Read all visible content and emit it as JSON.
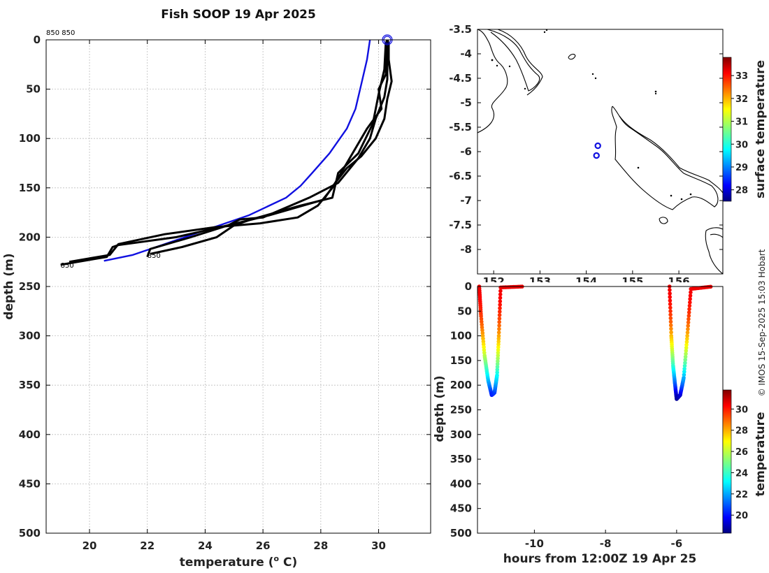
{
  "title": "Fish SOOP 19 Apr 2025",
  "credit": "© IMOS 15-Sep-2025 15:03 Hobart",
  "chart_data": [
    {
      "type": "line",
      "name": "temperature-profiles",
      "xlabel": "temperature (o C)",
      "xlabel_main": "temperature (",
      "xlabel_sup": "o",
      "xlabel_tail": " C)",
      "ylabel": "depth (m)",
      "xlim": [
        18.5,
        31.8
      ],
      "ylim": [
        0,
        500
      ],
      "y_reversed": true,
      "grid": true,
      "xticks": [
        20,
        22,
        24,
        26,
        28,
        30
      ],
      "yticks": [
        0,
        50,
        100,
        150,
        200,
        250,
        300,
        350,
        400,
        450,
        500
      ],
      "annotations": [
        {
          "text": "850 850",
          "x": 18.5,
          "y": -10
        },
        {
          "text": "850",
          "x": 19.0,
          "y": 228
        },
        {
          "text": "850",
          "x": 22.0,
          "y": 218
        }
      ],
      "series": [
        {
          "name": "climatology",
          "color": "#1010e0",
          "x": [
            29.7,
            29.6,
            29.4,
            29.2,
            28.9,
            28.3,
            27.7,
            27.3,
            26.8,
            25.5,
            24.0,
            22.5,
            21.5,
            20.5
          ],
          "y": [
            0,
            20,
            45,
            70,
            90,
            115,
            135,
            148,
            160,
            178,
            193,
            208,
            218,
            224
          ]
        },
        {
          "name": "cast-1",
          "color": "#000000",
          "x": [
            30.35,
            30.35,
            30.45,
            30.3,
            30.2,
            29.9,
            29.4,
            28.9,
            28.5,
            28.1,
            26.2,
            24.5,
            23.0,
            21.0,
            20.8,
            20.6,
            19.0
          ],
          "y": [
            2,
            20,
            42,
            60,
            80,
            100,
            118,
            130,
            145,
            162,
            178,
            190,
            200,
            208,
            210,
            220,
            228
          ]
        },
        {
          "name": "cast-2",
          "color": "#000000",
          "x": [
            30.3,
            30.25,
            30.0,
            30.1,
            29.6,
            29.2,
            28.8,
            28.4,
            27.9,
            27.2,
            25.9,
            24.3,
            22.6,
            21.0,
            20.7,
            19.3
          ],
          "y": [
            2,
            35,
            50,
            70,
            90,
            110,
            130,
            150,
            168,
            180,
            186,
            190,
            197,
            207,
            218,
            225
          ]
        },
        {
          "name": "cast-3",
          "color": "#000000",
          "x": [
            30.3,
            30.3,
            30.2,
            29.9,
            29.7,
            29.3,
            28.6,
            27.6,
            26.0,
            25.2,
            24.8,
            23.5,
            22.1,
            22.0
          ],
          "y": [
            2,
            40,
            58,
            80,
            100,
            120,
            145,
            160,
            180,
            182,
            188,
            200,
            212,
            220
          ]
        },
        {
          "name": "cast-4",
          "color": "#000000",
          "x": [
            30.25,
            30.2,
            30.0,
            29.8,
            29.3,
            28.6,
            28.4,
            27.3,
            25.6,
            25.0,
            24.4,
            23.2,
            22.1
          ],
          "y": [
            2,
            30,
            55,
            85,
            115,
            135,
            160,
            168,
            182,
            188,
            200,
            210,
            217
          ]
        }
      ]
    },
    {
      "type": "scatter",
      "name": "location-map",
      "xlim": [
        151.65,
        156.95
      ],
      "ylim": [
        -8.5,
        -3.5
      ],
      "xticks": [
        152,
        153,
        154,
        155,
        156
      ],
      "xtick_labels": [
        "152",
        "153",
        "154",
        "155",
        "156"
      ],
      "yticks": [
        -3.5,
        -4,
        -4.5,
        -5,
        -5.5,
        -6,
        -6.5,
        -7,
        -7.5,
        -8
      ],
      "ytick_labels": [
        "-3.5",
        "-4",
        "-4.5",
        "-5",
        "-5.5",
        "-6",
        "-6.5",
        "-7",
        "-7.5",
        "-8"
      ],
      "points": [
        {
          "lon": 154.25,
          "lat": -5.88
        },
        {
          "lon": 154.22,
          "lat": -6.08
        }
      ],
      "colorbar": {
        "label": "surface temperature",
        "range": [
          27.5,
          33.8
        ],
        "ticks": [
          28,
          29,
          30,
          31,
          32,
          33
        ]
      }
    },
    {
      "type": "scatter",
      "name": "depth-time",
      "xlabel": "hours from 12:00Z 19 Apr 25",
      "ylabel": "depth (m)",
      "xlim": [
        -11.6,
        -4.7
      ],
      "ylim": [
        0,
        500
      ],
      "y_reversed": true,
      "xticks": [
        -10,
        -8,
        -6
      ],
      "yticks": [
        0,
        50,
        100,
        150,
        200,
        250,
        300,
        350,
        400,
        450,
        500
      ],
      "colorbar": {
        "label": "temperature",
        "range": [
          18.3,
          31.8
        ],
        "ticks": [
          20,
          22,
          24,
          26,
          28,
          30
        ]
      },
      "dives": [
        {
          "name": "dive-1",
          "t": [
            -11.55,
            -11.5,
            -11.4,
            -11.3,
            -11.2,
            -11.12,
            -11.05,
            -11.0,
            -10.95,
            -10.3
          ],
          "d": [
            0,
            60,
            140,
            190,
            220,
            215,
            180,
            100,
            2,
            0
          ],
          "surface_temp": 30.3,
          "bottom_temp": 20.3
        },
        {
          "name": "dive-2",
          "t": [
            -6.2,
            -6.15,
            -6.1,
            -6.05,
            -6.0,
            -5.9,
            -5.8,
            -5.7,
            -5.6,
            -5.0
          ],
          "d": [
            0,
            100,
            160,
            195,
            228,
            220,
            185,
            100,
            5,
            0
          ],
          "surface_temp": 30.3,
          "bottom_temp": 18.6
        }
      ]
    }
  ]
}
